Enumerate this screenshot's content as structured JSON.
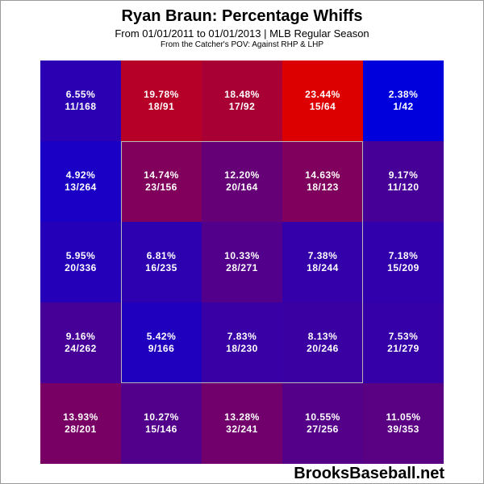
{
  "header": {
    "title": "Ryan Braun: Percentage Whiffs",
    "subtitle": "From 01/01/2011 to 01/01/2013 | MLB Regular Season",
    "pov_note": "From the Catcher's POV:   Against RHP & LHP"
  },
  "watermark": "BrooksBaseball.net",
  "colors": {
    "low": "#0000dd",
    "high": "#dd0000",
    "zone_border": "#b8b8b8"
  },
  "chart_data": {
    "type": "heatmap",
    "title": "Ryan Braun: Percentage Whiffs",
    "rows": 5,
    "cols": 5,
    "cells": [
      [
        {
          "pct": "6.55%",
          "count": "11/168",
          "value": 6.55
        },
        {
          "pct": "19.78%",
          "count": "18/91",
          "value": 19.78
        },
        {
          "pct": "18.48%",
          "count": "17/92",
          "value": 18.48
        },
        {
          "pct": "23.44%",
          "count": "15/64",
          "value": 23.44
        },
        {
          "pct": "2.38%",
          "count": "1/42",
          "value": 2.38
        }
      ],
      [
        {
          "pct": "4.92%",
          "count": "13/264",
          "value": 4.92
        },
        {
          "pct": "14.74%",
          "count": "23/156",
          "value": 14.74
        },
        {
          "pct": "12.20%",
          "count": "20/164",
          "value": 12.2
        },
        {
          "pct": "14.63%",
          "count": "18/123",
          "value": 14.63
        },
        {
          "pct": "9.17%",
          "count": "11/120",
          "value": 9.17
        }
      ],
      [
        {
          "pct": "5.95%",
          "count": "20/336",
          "value": 5.95
        },
        {
          "pct": "6.81%",
          "count": "16/235",
          "value": 6.81
        },
        {
          "pct": "10.33%",
          "count": "28/271",
          "value": 10.33
        },
        {
          "pct": "7.38%",
          "count": "18/244",
          "value": 7.38
        },
        {
          "pct": "7.18%",
          "count": "15/209",
          "value": 7.18
        }
      ],
      [
        {
          "pct": "9.16%",
          "count": "24/262",
          "value": 9.16
        },
        {
          "pct": "5.42%",
          "count": "9/166",
          "value": 5.42
        },
        {
          "pct": "7.83%",
          "count": "18/230",
          "value": 7.83
        },
        {
          "pct": "8.13%",
          "count": "20/246",
          "value": 8.13
        },
        {
          "pct": "7.53%",
          "count": "21/279",
          "value": 7.53
        }
      ],
      [
        {
          "pct": "13.93%",
          "count": "28/201",
          "value": 13.93
        },
        {
          "pct": "10.27%",
          "count": "15/146",
          "value": 10.27
        },
        {
          "pct": "13.28%",
          "count": "32/241",
          "value": 13.28
        },
        {
          "pct": "10.55%",
          "count": "27/256",
          "value": 10.55
        },
        {
          "pct": "11.05%",
          "count": "39/353",
          "value": 11.05
        }
      ]
    ],
    "strike_zone": {
      "row_start": 1,
      "row_end": 3,
      "col_start": 1,
      "col_end": 3
    }
  }
}
